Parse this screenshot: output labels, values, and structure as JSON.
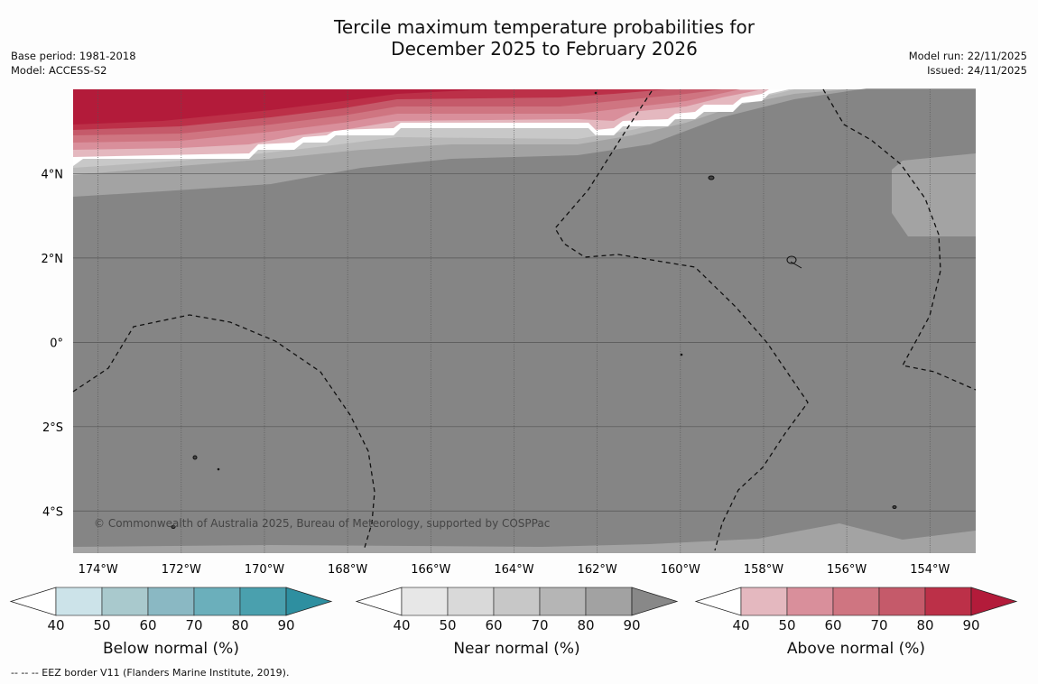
{
  "title": {
    "line1": "Tercile maximum temperature probabilities for",
    "line2": "December 2025 to February 2026"
  },
  "meta": {
    "base_period": "Base period: 1981-2018",
    "model": "Model: ACCESS-S2",
    "model_run": "Model run: 22/11/2025",
    "issued": "Issued: 24/11/2025"
  },
  "map": {
    "copyright": "© Commonwealth of Australia 2025, Bureau of Meteorology, supported by COSPPac",
    "lon_labels": [
      "174°W",
      "172°W",
      "170°W",
      "168°W",
      "166°W",
      "164°W",
      "162°W",
      "160°W",
      "158°W",
      "156°W",
      "154°W"
    ],
    "lat_labels": [
      "4°N",
      "2°N",
      "0°",
      "2°S",
      "4°S"
    ],
    "lon_range": [
      -174.6,
      -152.9
    ],
    "lat_range": [
      -5.0,
      6.0
    ],
    "colors": {
      "ocean_base": "#858585",
      "near_80": "#a3a3a3",
      "near_70": "#b8b8b8",
      "near_60": "#c8c8c8",
      "near_50": "#dadada",
      "above_40": "#e4b8bf",
      "above_50": "#d98f9b",
      "above_60": "#cf7581",
      "above_70": "#c55a6a",
      "above_80": "#bc3048",
      "above_90": "#b31b3a"
    }
  },
  "colorbars": [
    {
      "id": "below",
      "label": "Below normal (%)",
      "colors": [
        "#cce3e9",
        "#a9c9cd",
        "#8ab8c3",
        "#6bafbb",
        "#4aa0ae",
        "#2e8fa0"
      ]
    },
    {
      "id": "near",
      "label": "Near normal (%)",
      "colors": [
        "#e7e7e7",
        "#d9d9d9",
        "#c7c7c7",
        "#b5b5b5",
        "#a2a2a2",
        "#888888"
      ]
    },
    {
      "id": "above",
      "label": "Above normal (%)",
      "colors": [
        "#e4b8bf",
        "#d98f9b",
        "#cf7581",
        "#c55a6a",
        "#bc3048",
        "#b31b3a"
      ]
    }
  ],
  "colorbar_ticks": [
    "40",
    "50",
    "60",
    "70",
    "80",
    "90"
  ],
  "footnote": "--  --  -- EEZ border V11 (Flanders Marine Institute, 2019)."
}
